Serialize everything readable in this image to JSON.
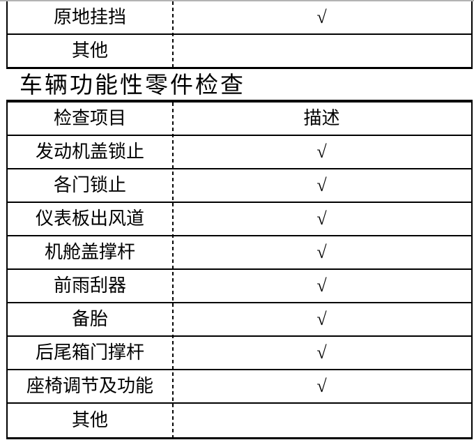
{
  "colors": {
    "background": "#ffffff",
    "line": "#000000",
    "top_cut_line": "#b3b3b3"
  },
  "heading": {
    "text": "车辆功能性零件检查"
  },
  "table1": {
    "rows": [
      {
        "item": "原地挂挡",
        "desc": "√"
      },
      {
        "item": "其他",
        "desc": ""
      }
    ]
  },
  "table2": {
    "headers": {
      "item": "检查项目",
      "desc": "描述"
    },
    "rows": [
      {
        "item": "发动机盖锁止",
        "desc": "√"
      },
      {
        "item": "各门锁止",
        "desc": "√"
      },
      {
        "item": "仪表板出风道",
        "desc": "√"
      },
      {
        "item": "机舱盖撑杆",
        "desc": "√"
      },
      {
        "item": "前雨刮器",
        "desc": "√"
      },
      {
        "item": "备胎",
        "desc": "√"
      },
      {
        "item": "后尾箱门撑杆",
        "desc": "√"
      },
      {
        "item": "座椅调节及功能",
        "desc": "√"
      },
      {
        "item": "其他",
        "desc": ""
      }
    ]
  }
}
